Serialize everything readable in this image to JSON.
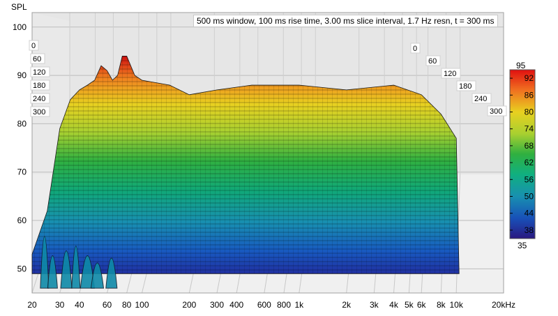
{
  "chart_data": {
    "type": "waterfall",
    "ylabel": "SPL",
    "info_text": "500 ms window, 100 ms rise time, 3.00 ms slice interval, 1.7 Hz resn, t = 300 ms",
    "y_ticks": [
      50,
      60,
      70,
      80,
      90,
      100
    ],
    "ylim": [
      45,
      103
    ],
    "x_ticks": [
      "20",
      "30",
      "40",
      "60",
      "80",
      "100",
      "200",
      "300",
      "400",
      "600",
      "800",
      "1k",
      "2k",
      "3k",
      "4k",
      "5k",
      "6k",
      "8k",
      "10k",
      "20kHz"
    ],
    "x_tick_values": [
      20,
      30,
      40,
      60,
      80,
      100,
      200,
      300,
      400,
      600,
      800,
      1000,
      2000,
      3000,
      4000,
      5000,
      6000,
      8000,
      10000,
      20000
    ],
    "xlim": [
      20,
      20000
    ],
    "time_ticks_ms": [
      "0",
      "60",
      "120",
      "180",
      "240",
      "300"
    ],
    "color_scale": {
      "max_label": "95",
      "min_label": "35",
      "tick_labels": [
        "92",
        "86",
        "80",
        "74",
        "68",
        "62",
        "56",
        "50",
        "44",
        "38"
      ],
      "range": [
        35,
        95
      ]
    },
    "first_slice_envelope": {
      "freq_hz": [
        20,
        25,
        30,
        35,
        40,
        45,
        50,
        55,
        60,
        65,
        70,
        75,
        80,
        90,
        100,
        150,
        200,
        300,
        500,
        1000,
        2000,
        4000,
        6000,
        8000,
        10000
      ],
      "spl_db": [
        53,
        62,
        79,
        85,
        87,
        88,
        89,
        92,
        91,
        89,
        90,
        94,
        94,
        90,
        89,
        88,
        86,
        87,
        88,
        88,
        87,
        88,
        86,
        82,
        77
      ]
    }
  }
}
